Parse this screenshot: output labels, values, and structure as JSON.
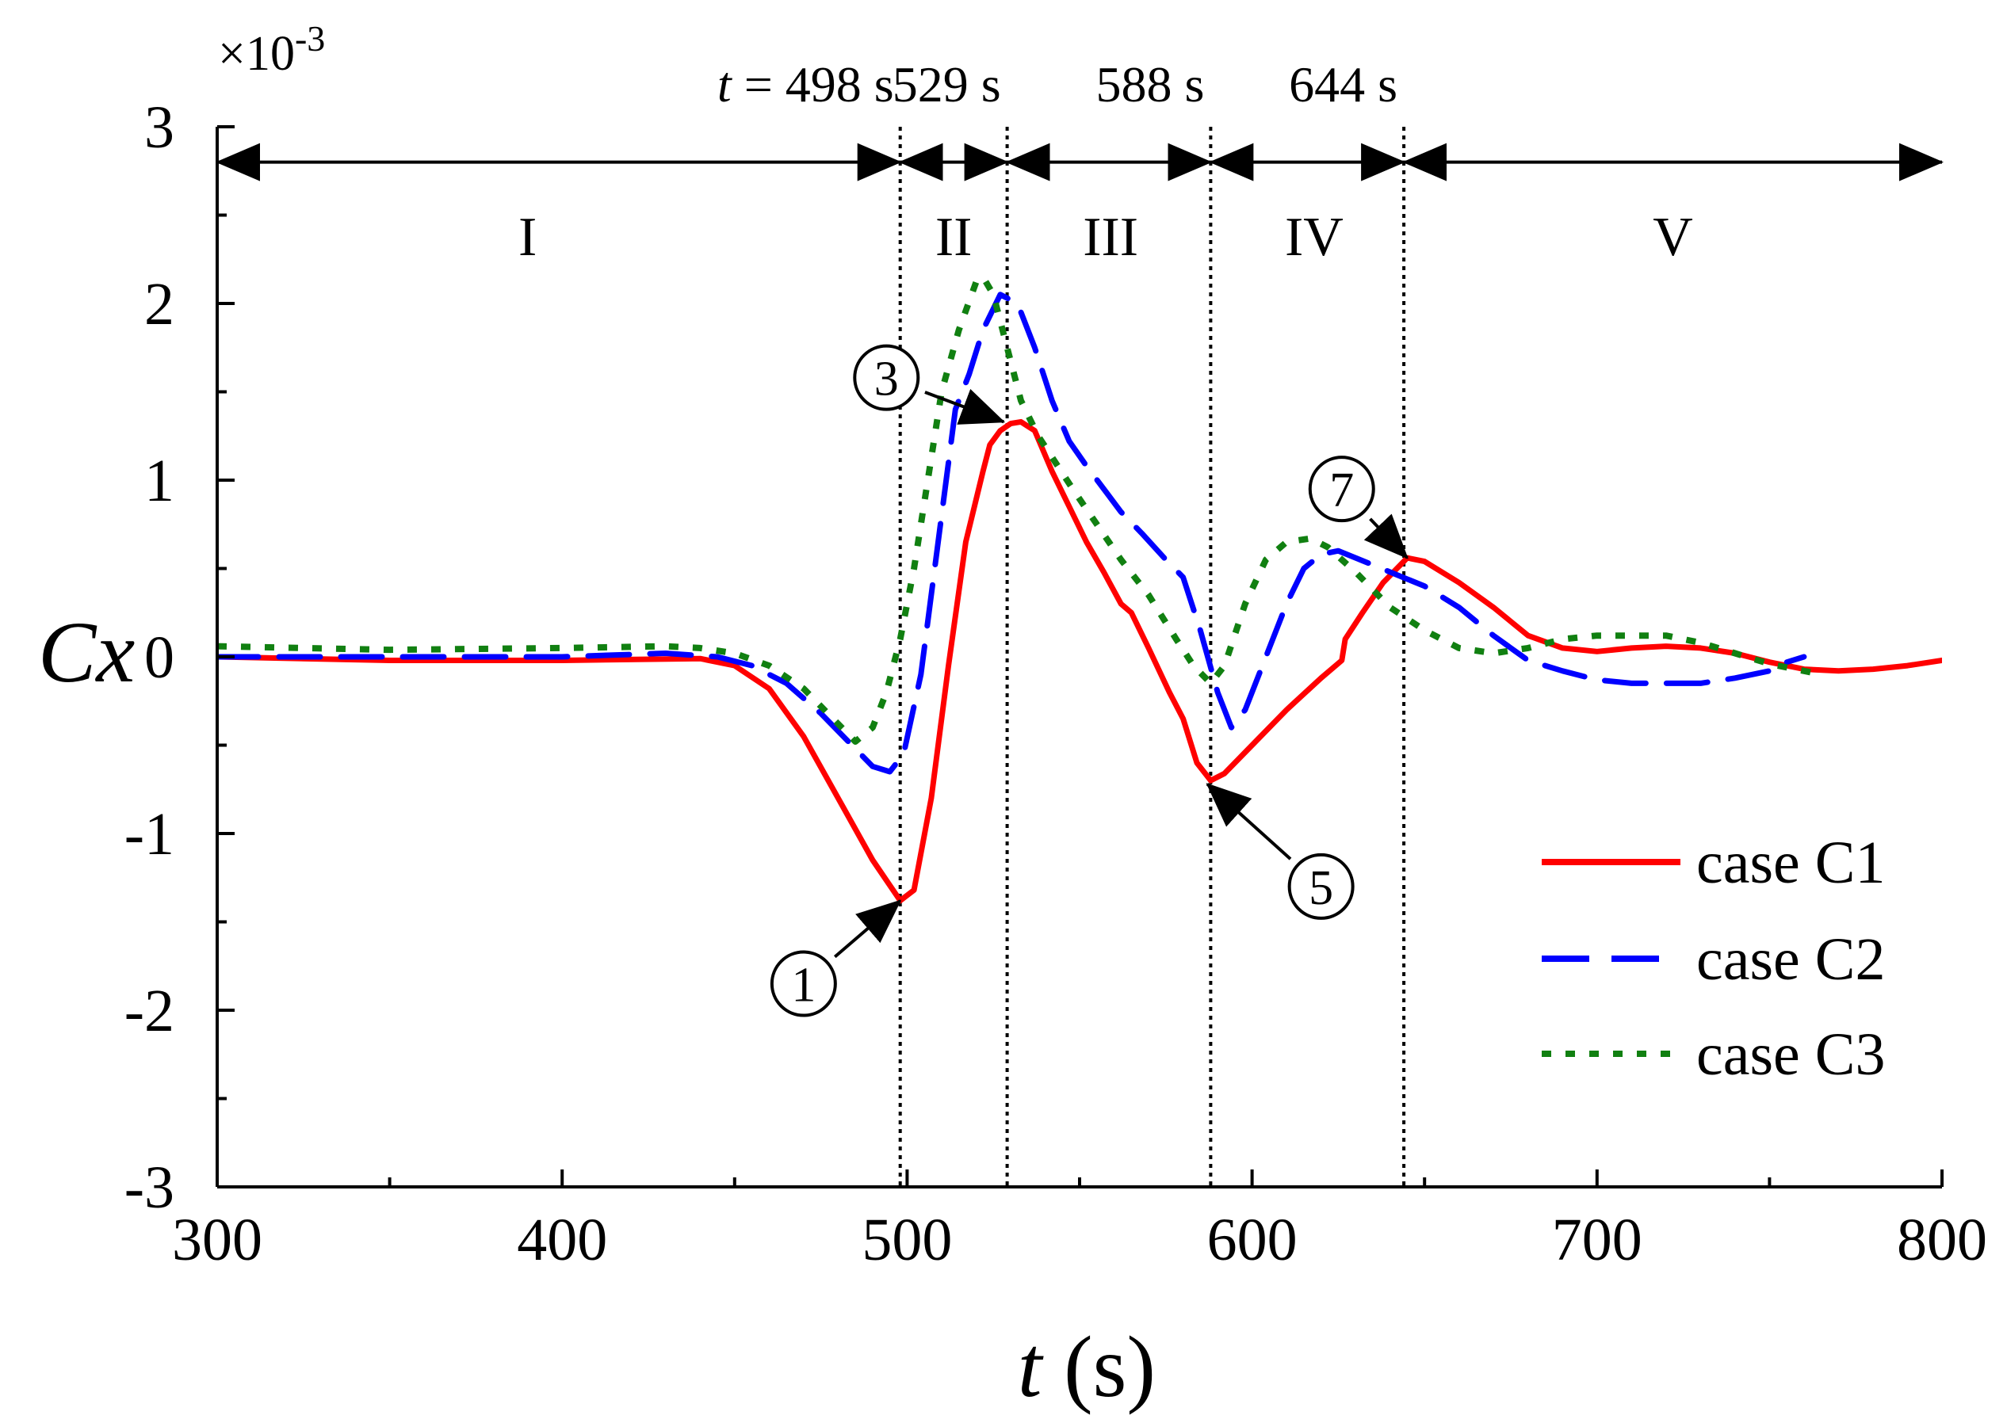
{
  "chart_data": {
    "type": "line",
    "xlabel_var": "t",
    "xlabel_unit": "(s)",
    "ylabel": "Cx",
    "multiplier": "×10",
    "multiplier_exp": "-3",
    "xlim": [
      300,
      800
    ],
    "ylim": [
      -3,
      3
    ],
    "xticks": [
      300,
      400,
      500,
      600,
      700,
      800
    ],
    "ytick_labels": [
      "3",
      "2",
      "1",
      "0",
      "-1",
      "-2",
      "-3"
    ],
    "ytick_values": [
      3,
      2,
      1,
      0,
      -1,
      -2,
      -3
    ],
    "event_lines": [
      {
        "t": 498,
        "label_prefix": "t",
        "label": "= 498 s"
      },
      {
        "t": 529,
        "label_prefix": "",
        "label": "529 s"
      },
      {
        "t": 588,
        "label_prefix": "",
        "label": "588 s"
      },
      {
        "t": 644,
        "label_prefix": "",
        "label": "644 s"
      }
    ],
    "stages": [
      {
        "label": "I",
        "t": 390
      },
      {
        "label": "II",
        "t": 513.5
      },
      {
        "label": "III",
        "t": 559
      },
      {
        "label": "IV",
        "t": 618
      },
      {
        "label": "V",
        "t": 722
      }
    ],
    "annotations": [
      {
        "label": "1",
        "tail": [
          470,
          -1.85
        ],
        "head": [
          498,
          -1.38
        ]
      },
      {
        "label": "3",
        "tail": [
          494,
          1.58
        ],
        "head": [
          528,
          1.33
        ]
      },
      {
        "label": "5",
        "tail": [
          620,
          -1.3
        ],
        "head": [
          587,
          -0.72
        ]
      },
      {
        "label": "7",
        "tail": [
          626,
          0.95
        ],
        "head": [
          645,
          0.56
        ]
      }
    ],
    "series": [
      {
        "name": "case C1",
        "color": "#ff0000",
        "style": "solid",
        "points": [
          [
            300,
            0
          ],
          [
            350,
            -0.02
          ],
          [
            400,
            -0.02
          ],
          [
            440,
            -0.01
          ],
          [
            450,
            -0.05
          ],
          [
            460,
            -0.18
          ],
          [
            470,
            -0.45
          ],
          [
            480,
            -0.8
          ],
          [
            490,
            -1.15
          ],
          [
            498,
            -1.38
          ],
          [
            502,
            -1.32
          ],
          [
            507,
            -0.8
          ],
          [
            512,
            -0.05
          ],
          [
            517,
            0.65
          ],
          [
            522,
            1.05
          ],
          [
            524,
            1.2
          ],
          [
            527,
            1.28
          ],
          [
            530,
            1.32
          ],
          [
            533,
            1.33
          ],
          [
            537,
            1.28
          ],
          [
            542,
            1.05
          ],
          [
            547,
            0.85
          ],
          [
            552,
            0.65
          ],
          [
            557,
            0.48
          ],
          [
            562,
            0.3
          ],
          [
            565,
            0.25
          ],
          [
            570,
            0.05
          ],
          [
            576,
            -0.2
          ],
          [
            580,
            -0.35
          ],
          [
            584,
            -0.6
          ],
          [
            588,
            -0.7
          ],
          [
            592,
            -0.66
          ],
          [
            600,
            -0.5
          ],
          [
            610,
            -0.3
          ],
          [
            620,
            -0.12
          ],
          [
            626,
            -0.02
          ],
          [
            627,
            0.1
          ],
          [
            632,
            0.25
          ],
          [
            638,
            0.42
          ],
          [
            645,
            0.56
          ],
          [
            650,
            0.54
          ],
          [
            660,
            0.42
          ],
          [
            670,
            0.28
          ],
          [
            680,
            0.12
          ],
          [
            690,
            0.05
          ],
          [
            700,
            0.03
          ],
          [
            710,
            0.05
          ],
          [
            720,
            0.06
          ],
          [
            730,
            0.05
          ],
          [
            740,
            0.02
          ],
          [
            750,
            -0.03
          ],
          [
            760,
            -0.07
          ],
          [
            770,
            -0.08
          ],
          [
            780,
            -0.07
          ],
          [
            790,
            -0.05
          ],
          [
            800,
            -0.02
          ]
        ]
      },
      {
        "name": "case C2",
        "color": "#0000ff",
        "style": "dashed",
        "points": [
          [
            300,
            0
          ],
          [
            350,
            0
          ],
          [
            400,
            0
          ],
          [
            430,
            0.02
          ],
          [
            445,
            0
          ],
          [
            455,
            -0.05
          ],
          [
            465,
            -0.15
          ],
          [
            475,
            -0.32
          ],
          [
            485,
            -0.52
          ],
          [
            490,
            -0.62
          ],
          [
            495,
            -0.65
          ],
          [
            499,
            -0.55
          ],
          [
            504,
            -0.1
          ],
          [
            510,
            0.8
          ],
          [
            514,
            1.4
          ],
          [
            518,
            1.6
          ],
          [
            522,
            1.85
          ],
          [
            527,
            2.05
          ],
          [
            532,
            2.0
          ],
          [
            537,
            1.75
          ],
          [
            542,
            1.45
          ],
          [
            547,
            1.22
          ],
          [
            552,
            1.08
          ],
          [
            557,
            0.95
          ],
          [
            562,
            0.82
          ],
          [
            568,
            0.7
          ],
          [
            575,
            0.55
          ],
          [
            580,
            0.45
          ],
          [
            585,
            0.15
          ],
          [
            590,
            -0.2
          ],
          [
            594,
            -0.4
          ],
          [
            598,
            -0.3
          ],
          [
            603,
            -0.05
          ],
          [
            610,
            0.3
          ],
          [
            615,
            0.5
          ],
          [
            620,
            0.58
          ],
          [
            625,
            0.6
          ],
          [
            630,
            0.56
          ],
          [
            640,
            0.48
          ],
          [
            650,
            0.4
          ],
          [
            660,
            0.28
          ],
          [
            670,
            0.12
          ],
          [
            680,
            -0.02
          ],
          [
            690,
            -0.08
          ],
          [
            700,
            -0.13
          ],
          [
            710,
            -0.15
          ],
          [
            720,
            -0.15
          ],
          [
            730,
            -0.15
          ],
          [
            740,
            -0.12
          ],
          [
            750,
            -0.08
          ],
          [
            755,
            -0.03
          ],
          [
            760,
            0
          ]
        ]
      },
      {
        "name": "case C3",
        "color": "#118011",
        "style": "dotted",
        "points": [
          [
            300,
            0.06
          ],
          [
            350,
            0.04
          ],
          [
            400,
            0.05
          ],
          [
            430,
            0.06
          ],
          [
            440,
            0.05
          ],
          [
            450,
            0.02
          ],
          [
            460,
            -0.05
          ],
          [
            470,
            -0.18
          ],
          [
            480,
            -0.38
          ],
          [
            485,
            -0.48
          ],
          [
            490,
            -0.4
          ],
          [
            494,
            -0.2
          ],
          [
            498,
            0.1
          ],
          [
            502,
            0.5
          ],
          [
            506,
            1.0
          ],
          [
            510,
            1.5
          ],
          [
            515,
            1.85
          ],
          [
            520,
            2.12
          ],
          [
            522,
            2.15
          ],
          [
            525,
            2.05
          ],
          [
            529,
            1.75
          ],
          [
            533,
            1.45
          ],
          [
            538,
            1.25
          ],
          [
            543,
            1.1
          ],
          [
            548,
            0.95
          ],
          [
            555,
            0.75
          ],
          [
            562,
            0.55
          ],
          [
            570,
            0.35
          ],
          [
            578,
            0.1
          ],
          [
            583,
            -0.05
          ],
          [
            588,
            -0.15
          ],
          [
            592,
            -0.05
          ],
          [
            598,
            0.3
          ],
          [
            604,
            0.55
          ],
          [
            610,
            0.65
          ],
          [
            617,
            0.67
          ],
          [
            622,
            0.62
          ],
          [
            630,
            0.48
          ],
          [
            640,
            0.28
          ],
          [
            650,
            0.15
          ],
          [
            660,
            0.05
          ],
          [
            670,
            0.02
          ],
          [
            680,
            0.05
          ],
          [
            690,
            0.1
          ],
          [
            700,
            0.12
          ],
          [
            710,
            0.12
          ],
          [
            720,
            0.12
          ],
          [
            730,
            0.08
          ],
          [
            740,
            0.02
          ],
          [
            750,
            -0.04
          ],
          [
            760,
            -0.08
          ],
          [
            765,
            -0.1
          ]
        ]
      }
    ]
  }
}
